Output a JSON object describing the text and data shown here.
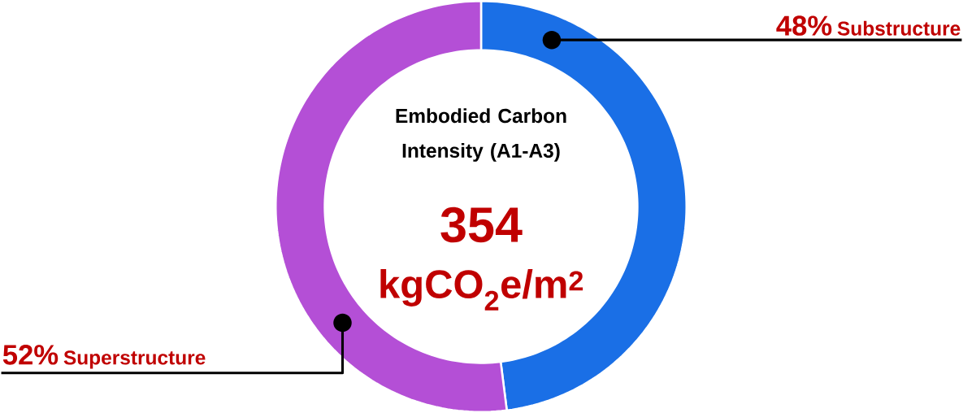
{
  "chart_data": {
    "type": "donut",
    "title": "Embodied Carbon Intensity (A1-A3)",
    "annotations": [
      "354",
      "kgCO$_{2}$e/m$^{2}$"
    ],
    "categories": [
      "Substructure",
      "Superstructure"
    ],
    "values": [
      48,
      52
    ],
    "value_labels": [
      "48%",
      "52%"
    ],
    "colors": [
      "#1a6fe6",
      "#b44fd6"
    ]
  }
}
